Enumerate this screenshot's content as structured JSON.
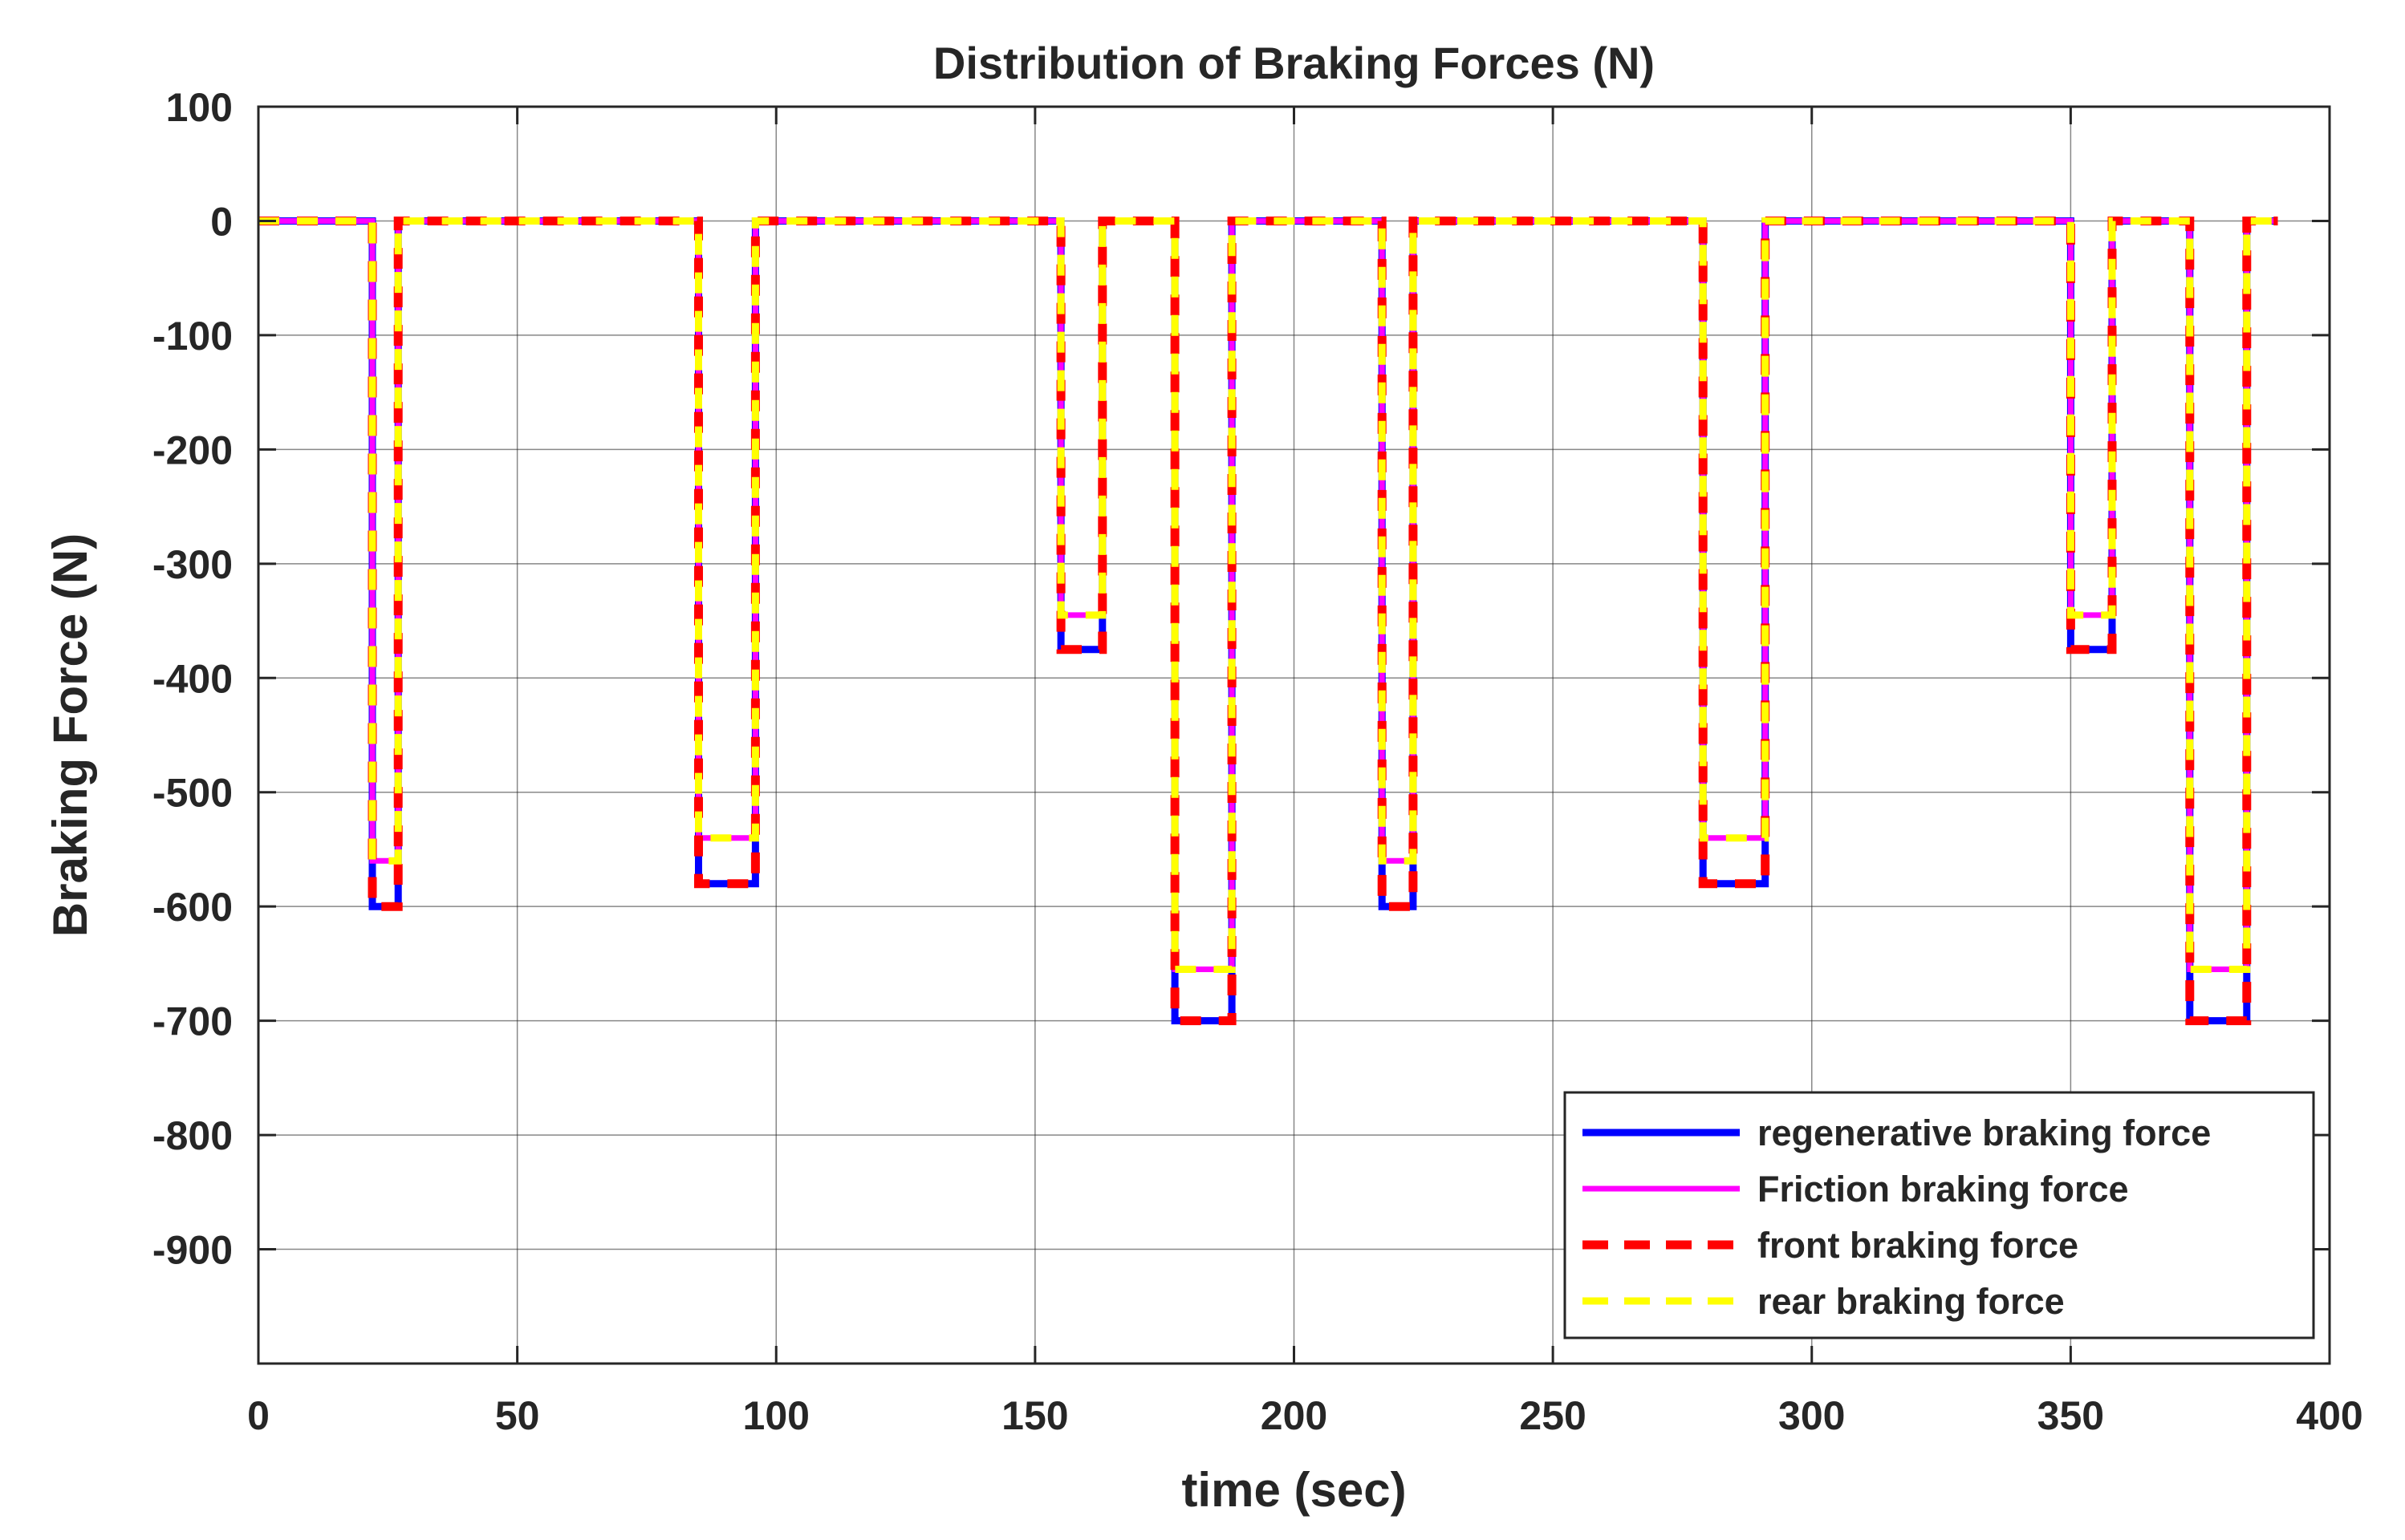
{
  "chart_data": {
    "type": "line",
    "title": "Distribution of Braking Forces (N)",
    "xlabel": "time (sec)",
    "ylabel": "Braking Force (N)",
    "xlim": [
      0,
      400
    ],
    "ylim": [
      -1000,
      100
    ],
    "xticks": [
      0,
      50,
      100,
      150,
      200,
      250,
      300,
      350,
      400
    ],
    "yticks": [
      100,
      0,
      -100,
      -200,
      -300,
      -400,
      -500,
      -600,
      -700,
      -800,
      -900
    ],
    "grid": true,
    "legend_position": "bottom-right",
    "series": [
      {
        "name": "regenerative braking force",
        "color": "#0000ff",
        "style": "solid",
        "x": [
          0,
          22,
          22,
          27,
          27,
          85,
          85,
          96,
          96,
          155,
          155,
          163,
          163,
          177,
          177,
          188,
          188,
          217,
          217,
          223,
          223,
          279,
          279,
          291,
          291,
          350,
          350,
          358,
          358,
          373,
          373,
          384,
          384,
          390
        ],
        "y": [
          0,
          0,
          -600,
          -600,
          0,
          0,
          -580,
          -580,
          0,
          0,
          -375,
          -375,
          0,
          0,
          -700,
          -700,
          0,
          0,
          -600,
          -600,
          0,
          0,
          -580,
          -580,
          0,
          0,
          -375,
          -375,
          0,
          0,
          -700,
          -700,
          0,
          0
        ]
      },
      {
        "name": "Friction braking force",
        "color": "#ff00ff",
        "style": "solid",
        "x": [
          0,
          22,
          22,
          27,
          27,
          85,
          85,
          96,
          96,
          155,
          155,
          163,
          163,
          177,
          177,
          188,
          188,
          217,
          217,
          223,
          223,
          279,
          279,
          291,
          291,
          350,
          350,
          358,
          358,
          373,
          373,
          384,
          384,
          390
        ],
        "y": [
          0,
          0,
          -560,
          -560,
          0,
          0,
          -540,
          -540,
          0,
          0,
          -345,
          -345,
          0,
          0,
          -655,
          -655,
          0,
          0,
          -560,
          -560,
          0,
          0,
          -540,
          -540,
          0,
          0,
          -345,
          -345,
          0,
          0,
          -655,
          -655,
          0,
          0
        ]
      },
      {
        "name": "front braking force",
        "color": "#ff0000",
        "style": "dashed",
        "x": [
          0,
          22,
          22,
          27,
          27,
          85,
          85,
          96,
          96,
          155,
          155,
          163,
          163,
          177,
          177,
          188,
          188,
          217,
          217,
          223,
          223,
          279,
          279,
          291,
          291,
          350,
          350,
          358,
          358,
          373,
          373,
          384,
          384,
          390
        ],
        "y": [
          0,
          0,
          -600,
          -600,
          0,
          0,
          -580,
          -580,
          0,
          0,
          -375,
          -375,
          0,
          0,
          -700,
          -700,
          0,
          0,
          -600,
          -600,
          0,
          0,
          -580,
          -580,
          0,
          0,
          -375,
          -375,
          0,
          0,
          -700,
          -700,
          0,
          0
        ]
      },
      {
        "name": "rear braking force",
        "color": "#ffff00",
        "style": "dashed",
        "x": [
          0,
          22,
          22,
          27,
          27,
          85,
          85,
          96,
          96,
          155,
          155,
          163,
          163,
          177,
          177,
          188,
          188,
          217,
          217,
          223,
          223,
          279,
          279,
          291,
          291,
          350,
          350,
          358,
          358,
          373,
          373,
          384,
          384,
          390
        ],
        "y": [
          0,
          0,
          -560,
          -560,
          0,
          0,
          -540,
          -540,
          0,
          0,
          -345,
          -345,
          0,
          0,
          -655,
          -655,
          0,
          0,
          -560,
          -560,
          0,
          0,
          -540,
          -540,
          0,
          0,
          -345,
          -345,
          0,
          0,
          -655,
          -655,
          0,
          0
        ]
      }
    ]
  }
}
